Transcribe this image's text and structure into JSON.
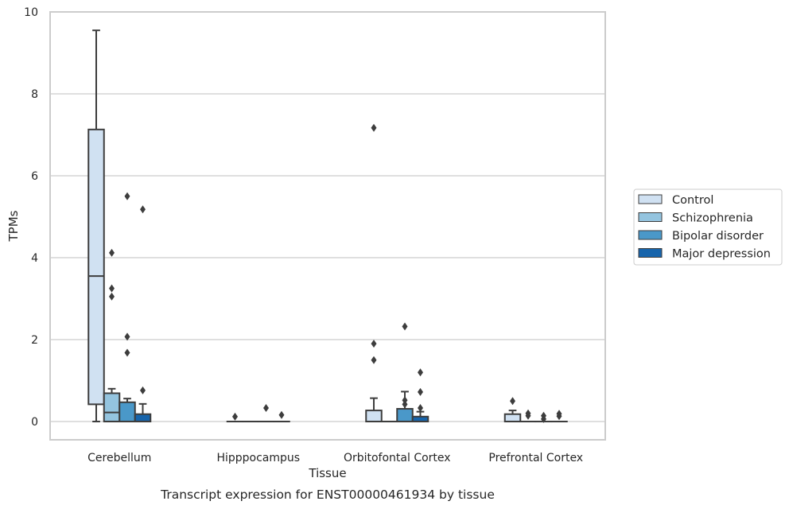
{
  "caption": "Transcript expression for ENST00000461934 by tissue",
  "chart_data": {
    "type": "box",
    "xlabel": "Tissue",
    "ylabel": "TPMs",
    "ylim": [
      -0.45,
      10
    ],
    "yticks": [
      0,
      2,
      4,
      6,
      8,
      10
    ],
    "grid": true,
    "legend_placement": "right",
    "categories": [
      "Cerebellum",
      "Hipppocampus",
      "Orbitofontal Cortex",
      "Prefrontal Cortex"
    ],
    "colors": {
      "Control": "#d0e1f2",
      "Schizophrenia": "#94c4df",
      "Bipolar disorder": "#4a98c9",
      "Major depression": "#1764ab",
      "edge": "#3d3d3d",
      "grid": "#cccccc",
      "frame": "#cccccc"
    },
    "series": [
      {
        "name": "Control",
        "boxes": [
          {
            "q1": 0.42,
            "median": 3.55,
            "q3": 7.13,
            "whislo": 0.0,
            "whishi": 9.55,
            "fliers": []
          },
          {
            "q1": 0.0,
            "median": 0.0,
            "q3": 0.0,
            "whislo": 0.0,
            "whishi": 0.0,
            "fliers": [
              0.12
            ]
          },
          {
            "q1": 0.0,
            "median": 0.0,
            "q3": 0.27,
            "whislo": 0.0,
            "whishi": 0.57,
            "fliers": [
              1.5,
              1.9,
              7.17
            ]
          },
          {
            "q1": 0.0,
            "median": 0.0,
            "q3": 0.18,
            "whislo": 0.0,
            "whishi": 0.27,
            "fliers": [
              0.5
            ]
          }
        ]
      },
      {
        "name": "Schizophrenia",
        "boxes": [
          {
            "q1": 0.0,
            "median": 0.22,
            "q3": 0.69,
            "whislo": 0.0,
            "whishi": 0.8,
            "fliers": [
              3.05,
              3.25,
              4.12
            ]
          },
          {
            "q1": 0.0,
            "median": 0.0,
            "q3": 0.0,
            "whislo": 0.0,
            "whishi": 0.0,
            "fliers": []
          },
          {
            "q1": 0.0,
            "median": 0.0,
            "q3": 0.0,
            "whislo": 0.0,
            "whishi": 0.0,
            "fliers": []
          },
          {
            "q1": 0.0,
            "median": 0.0,
            "q3": 0.0,
            "whislo": 0.0,
            "whishi": 0.0,
            "fliers": [
              0.14,
              0.2
            ]
          }
        ]
      },
      {
        "name": "Bipolar disorder",
        "boxes": [
          {
            "q1": 0.0,
            "median": 0.0,
            "q3": 0.47,
            "whislo": 0.0,
            "whishi": 0.56,
            "fliers": [
              1.68,
              2.07,
              5.5
            ]
          },
          {
            "q1": 0.0,
            "median": 0.0,
            "q3": 0.0,
            "whislo": 0.0,
            "whishi": 0.0,
            "fliers": [
              0.33
            ]
          },
          {
            "q1": 0.0,
            "median": 0.0,
            "q3": 0.31,
            "whislo": 0.0,
            "whishi": 0.73,
            "fliers": [
              0.42,
              0.52,
              2.32
            ]
          },
          {
            "q1": 0.0,
            "median": 0.0,
            "q3": 0.0,
            "whislo": 0.0,
            "whishi": 0.0,
            "fliers": [
              0.06,
              0.14
            ]
          }
        ]
      },
      {
        "name": "Major depression",
        "boxes": [
          {
            "q1": 0.0,
            "median": 0.0,
            "q3": 0.18,
            "whislo": 0.0,
            "whishi": 0.43,
            "fliers": [
              0.76,
              5.18
            ]
          },
          {
            "q1": 0.0,
            "median": 0.0,
            "q3": 0.0,
            "whislo": 0.0,
            "whishi": 0.0,
            "fliers": [
              0.16
            ]
          },
          {
            "q1": 0.0,
            "median": 0.0,
            "q3": 0.12,
            "whislo": 0.0,
            "whishi": 0.24,
            "fliers": [
              0.33,
              0.72,
              1.2
            ]
          },
          {
            "q1": 0.0,
            "median": 0.0,
            "q3": 0.0,
            "whislo": 0.0,
            "whishi": 0.0,
            "fliers": [
              0.13,
              0.19
            ]
          }
        ]
      }
    ]
  }
}
